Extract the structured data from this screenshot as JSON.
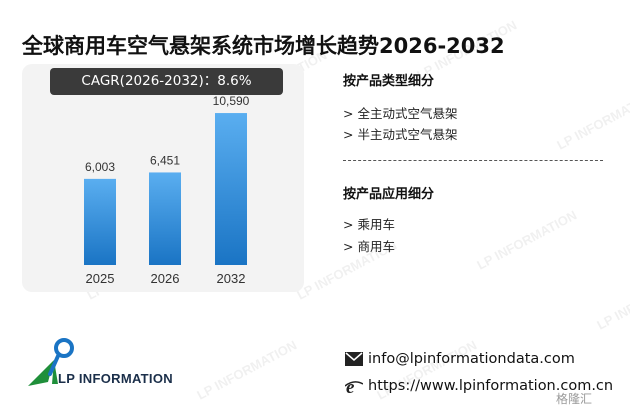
{
  "title": "全球商用车空气悬架系统市场增长趋势2026-2032",
  "cagr_label": "CAGR(2026-2032)：8.6%",
  "chart_data": {
    "type": "bar",
    "categories": [
      "2025",
      "2026",
      "2032"
    ],
    "values": [
      6003,
      6451,
      10590
    ],
    "value_labels": [
      "6,003",
      "6,451",
      "10,590"
    ],
    "title": "",
    "xlabel": "",
    "ylabel": "",
    "ylim": [
      0,
      11500
    ],
    "grid": false,
    "legend": "none",
    "bar_color_top": "#5aaef0",
    "bar_color_bottom": "#1a74c4"
  },
  "segments": {
    "by_type": {
      "heading": "按产品类型细分",
      "items": [
        "> 全主动式空气悬架",
        "> 半主动式空气悬架"
      ]
    },
    "by_application": {
      "heading": "按产品应用细分",
      "items": [
        "> 乘用车",
        "> 商用车"
      ]
    }
  },
  "contact": {
    "email": "info@lpinformationdata.com",
    "website": "https://www.lpinformation.com.cn",
    "email_icon": "envelope-icon",
    "web_icon": "globe-e-icon"
  },
  "logo": {
    "text": "LP INFORMATION",
    "icon": "lp-logo-icon"
  },
  "watermark": {
    "text": "LP INFORMATION",
    "corner_text": "格隆汇"
  }
}
